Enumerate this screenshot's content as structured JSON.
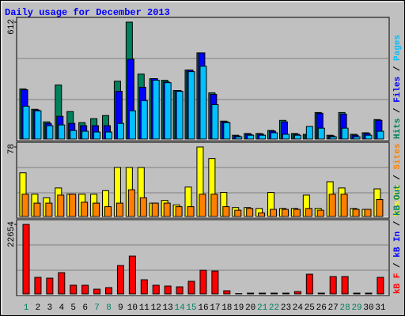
{
  "chart_data": [
    {
      "type": "bar",
      "title": "Daily usage for December 2013",
      "categories": [
        "1",
        "2",
        "3",
        "4",
        "5",
        "6",
        "7",
        "8",
        "9",
        "10",
        "11",
        "12",
        "13",
        "14",
        "15",
        "16",
        "17",
        "18",
        "19",
        "20",
        "21",
        "22",
        "23",
        "24",
        "25",
        "26",
        "27",
        "28",
        "29",
        "30",
        "31"
      ],
      "category_colors": [
        "#008060",
        "#000000",
        "#000000",
        "#000000",
        "#000000",
        "#000000",
        "#008060",
        "#008060",
        "#000000",
        "#000000",
        "#000000",
        "#000000",
        "#000000",
        "#008060",
        "#008060",
        "#000000",
        "#000000",
        "#000000",
        "#000000",
        "#000000",
        "#008060",
        "#008060",
        "#000000",
        "#000000",
        "#000000",
        "#000000",
        "#000000",
        "#008060",
        "#008060",
        "#000000",
        "#000000"
      ],
      "series": [
        {
          "name": "Hits",
          "color": "#00805C",
          "values": [
            262,
            156,
            90,
            283,
            144,
            86,
            107,
            123,
            303,
            612,
            340,
            316,
            308,
            254,
            361,
            451,
            242,
            94,
            20,
            29,
            29,
            45,
            98,
            29,
            25,
            139,
            20,
            139,
            25,
            33,
            102
          ]
        },
        {
          "name": "Files",
          "color": "#0000FF",
          "values": [
            258,
            152,
            82,
            119,
            82,
            70,
            70,
            70,
            250,
            418,
            271,
            316,
            299,
            254,
            361,
            451,
            234,
            90,
            16,
            25,
            25,
            41,
            90,
            25,
            20,
            135,
            16,
            131,
            20,
            29,
            98
          ]
        },
        {
          "name": "Pages",
          "color": "#00C0FF",
          "values": [
            172,
            148,
            70,
            74,
            45,
            41,
            37,
            37,
            82,
            148,
            201,
            308,
            295,
            250,
            353,
            381,
            180,
            86,
            12,
            20,
            20,
            33,
            25,
            20,
            66,
            57,
            12,
            57,
            12,
            20,
            41
          ]
        }
      ],
      "ylim": [
        0,
        612
      ],
      "yticks": [
        612
      ]
    },
    {
      "type": "bar",
      "series": [
        {
          "name": "Visits",
          "color": "#FFFF00",
          "values": [
            49,
            25,
            21,
            32,
            25,
            25,
            25,
            29,
            55,
            55,
            55,
            15,
            18,
            13,
            33,
            78,
            65,
            27,
            10,
            10,
            9,
            27,
            9,
            9,
            24,
            9,
            39,
            32,
            9,
            8,
            31
          ]
        },
        {
          "name": "Sites",
          "color": "#FF8000",
          "values": [
            25,
            15,
            15,
            24,
            25,
            16,
            15,
            11,
            15,
            30,
            21,
            15,
            15,
            11,
            11,
            25,
            25,
            11,
            7,
            9,
            4,
            8,
            8,
            8,
            9,
            7,
            25,
            25,
            8,
            8,
            19
          ]
        }
      ],
      "ylim": [
        0,
        78
      ],
      "yticks": [
        78
      ]
    },
    {
      "type": "bar",
      "series": [
        {
          "name": "kB F",
          "color": "#FF0000",
          "values": [
            22654,
            5397,
            5140,
            6939,
            2827,
            2827,
            1542,
            2056,
            9252,
            12336,
            4626,
            2827,
            2570,
            2313,
            4112,
            7710,
            7453,
            1028,
            100,
            257,
            257,
            257,
            257,
            771,
            6425,
            257,
            5654,
            5654,
            257,
            257,
            5397
          ]
        },
        {
          "name": "kB In",
          "color": "#0000FF"
        },
        {
          "name": "kB Out",
          "color": "#00805C"
        }
      ],
      "ylim": [
        0,
        22654
      ],
      "yticks": [
        22654
      ]
    }
  ]
}
